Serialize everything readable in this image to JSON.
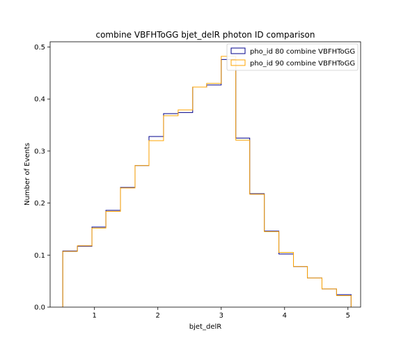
{
  "chart_data": {
    "type": "step-histogram",
    "title": "combine VBFHToGG bjet_delR photon ID comparison",
    "xlabel": "bjet_delR",
    "ylabel": "Number of Events",
    "xlim": [
      0.3,
      5.2
    ],
    "ylim": [
      0,
      0.51
    ],
    "xticks": [
      1,
      2,
      3,
      4,
      5
    ],
    "yticks": [
      0.0,
      0.1,
      0.2,
      0.3,
      0.4,
      0.5
    ],
    "ytick_labels": [
      "0.0",
      "0.1",
      "0.2",
      "0.3",
      "0.4",
      "0.5"
    ],
    "bin_edges": [
      0.5,
      0.73,
      0.96,
      1.18,
      1.41,
      1.64,
      1.86,
      2.09,
      2.32,
      2.55,
      2.77,
      3.0,
      3.23,
      3.45,
      3.68,
      3.91,
      4.14,
      4.36,
      4.59,
      4.82,
      5.05
    ],
    "legend_position": "upper right",
    "series": [
      {
        "name": "pho_id 80 combine VBFHToGG",
        "color": "#00008b",
        "values": [
          0.108,
          0.117,
          0.154,
          0.186,
          0.23,
          0.272,
          0.328,
          0.372,
          0.374,
          0.423,
          0.427,
          0.476,
          0.325,
          0.218,
          0.146,
          0.102,
          0.078,
          0.056,
          0.035,
          0.024
        ]
      },
      {
        "name": "pho_id 90 combine VBFHToGG",
        "color": "#ffa500",
        "values": [
          0.107,
          0.118,
          0.152,
          0.184,
          0.229,
          0.272,
          0.32,
          0.368,
          0.379,
          0.423,
          0.43,
          0.482,
          0.321,
          0.217,
          0.145,
          0.105,
          0.078,
          0.056,
          0.035,
          0.022
        ]
      }
    ]
  }
}
